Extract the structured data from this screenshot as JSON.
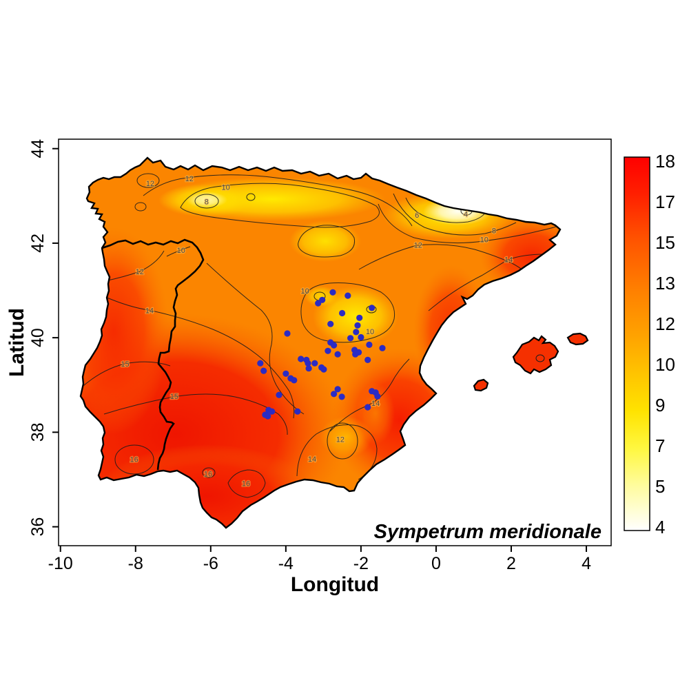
{
  "figure": {
    "background": "#ffffff"
  },
  "chart_data": {
    "type": "heatmap",
    "subtype": "interpolated climate surface with contour lines over Iberian Peninsula map, plus species occurrence points",
    "title": "Sympetrum meridionale",
    "xlabel": "Longitud",
    "ylabel": "Latitud",
    "xlim": [
      -10.05,
      4.66
    ],
    "ylim": [
      35.6,
      44.2
    ],
    "x_ticks": [
      "-10",
      "-8",
      "-6",
      "-4",
      "-2",
      "0",
      "2",
      "4"
    ],
    "x_tick_values": [
      -10,
      -8,
      -6,
      -4,
      -2,
      0,
      2,
      4
    ],
    "y_ticks": [
      "36",
      "38",
      "40",
      "42",
      "44"
    ],
    "y_tick_values": [
      36,
      38,
      40,
      42,
      44
    ],
    "grid": false,
    "legend_position": "right colorbar",
    "colorbar": {
      "labels": [
        "18",
        "17",
        "15",
        "13",
        "12",
        "10",
        "9",
        "7",
        "5",
        "4"
      ],
      "range": [
        4,
        18
      ],
      "gradient_top_to_bottom": [
        "#FF0000",
        "#FF2000",
        "#FF5300",
        "#FF7E00",
        "#FFA300",
        "#FFC400",
        "#FFE300",
        "#FFF740",
        "#FFFC9E",
        "#FFFFFF"
      ]
    },
    "palette": {
      "base_land": "#FB8500",
      "hot": "#F21C00",
      "cool": "#FFEA00",
      "coolest": "#FFFFF2",
      "point": "#2B2BC4",
      "coast": "#000000",
      "contour": "#1C1C1C"
    },
    "contour_labels": [
      [
        12,
        -7.61,
        43.27
      ],
      [
        12,
        -6.57,
        43.37
      ],
      [
        10,
        -5.6,
        43.19
      ],
      [
        8,
        -6.11,
        42.88
      ],
      [
        10,
        -6.79,
        41.85
      ],
      [
        12,
        -7.89,
        41.4
      ],
      [
        6,
        -0.51,
        42.6
      ],
      [
        4,
        0.79,
        42.62
      ],
      [
        8,
        1.54,
        42.27
      ],
      [
        10,
        1.28,
        42.08
      ],
      [
        12,
        -0.48,
        41.96
      ],
      [
        14,
        1.93,
        41.66
      ],
      [
        10,
        -3.49,
        40.99
      ],
      [
        10,
        -1.76,
        40.13
      ],
      [
        14,
        -7.63,
        40.58
      ],
      [
        15,
        -8.28,
        39.45
      ],
      [
        15,
        -6.97,
        38.76
      ],
      [
        14,
        -1.61,
        38.62
      ],
      [
        12,
        -2.55,
        37.85
      ],
      [
        14,
        -3.3,
        37.44
      ],
      [
        16,
        -8.04,
        37.43
      ],
      [
        16,
        -6.07,
        37.12
      ],
      [
        16,
        -5.06,
        36.92
      ]
    ],
    "occurrences": [
      [
        -2.75,
        40.96
      ],
      [
        -2.35,
        40.89
      ],
      [
        -3.03,
        40.8
      ],
      [
        -3.14,
        40.73
      ],
      [
        -1.71,
        40.63
      ],
      [
        -2.5,
        40.52
      ],
      [
        -2.04,
        40.42
      ],
      [
        -2.09,
        40.26
      ],
      [
        -2.81,
        40.29
      ],
      [
        -2.13,
        40.12
      ],
      [
        -2.0,
        40.01
      ],
      [
        -2.28,
        39.99
      ],
      [
        -1.78,
        39.85
      ],
      [
        -1.43,
        39.78
      ],
      [
        -3.96,
        40.09
      ],
      [
        -2.81,
        39.9
      ],
      [
        -2.72,
        39.84
      ],
      [
        -2.88,
        39.72
      ],
      [
        -2.62,
        39.65
      ],
      [
        -2.17,
        39.74
      ],
      [
        -2.06,
        39.69
      ],
      [
        -2.15,
        39.65
      ],
      [
        -1.82,
        39.53
      ],
      [
        -3.6,
        39.55
      ],
      [
        -3.45,
        39.53
      ],
      [
        -3.41,
        39.46
      ],
      [
        -3.23,
        39.46
      ],
      [
        -3.39,
        39.35
      ],
      [
        -3.05,
        39.37
      ],
      [
        -2.99,
        39.33
      ],
      [
        -4.68,
        39.46
      ],
      [
        -4.59,
        39.3
      ],
      [
        -4.0,
        39.24
      ],
      [
        -3.87,
        39.14
      ],
      [
        -3.78,
        39.1
      ],
      [
        -4.18,
        38.79
      ],
      [
        -2.62,
        38.91
      ],
      [
        -2.72,
        38.81
      ],
      [
        -2.51,
        38.75
      ],
      [
        -1.71,
        38.87
      ],
      [
        -1.61,
        38.84
      ],
      [
        -1.56,
        38.76
      ],
      [
        -1.82,
        38.53
      ],
      [
        -4.46,
        38.47
      ],
      [
        -4.37,
        38.44
      ],
      [
        -4.55,
        38.37
      ],
      [
        -4.48,
        38.34
      ],
      [
        -3.69,
        38.44
      ]
    ]
  }
}
